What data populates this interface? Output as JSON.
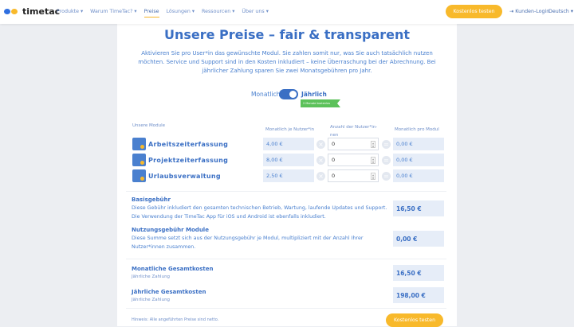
{
  "nav": {
    "logo": "timetac",
    "items": [
      "Produkte ▾",
      "Warum TimeTac? ▾",
      "Preise",
      "Lösungen ▾",
      "Ressourcen ▾",
      "Über uns ▾"
    ],
    "active": "Preise",
    "cta": "Kostenlos testen",
    "login": "Kunden-Login",
    "language": "Deutsch ▾"
  },
  "hero": {
    "title": "Unsere Preise – fair & transparent",
    "intro": "Aktivieren Sie pro User*in das gewünschte Modul. Sie zahlen somit nur, was Sie auch tatsächlich nutzen möchten. Service und Support sind in den Kosten inkludiert – keine Überraschung bei der Abrechnung. Bei jährlicher Zahlung sparen Sie zwei Monatsgebühren pro Jahr."
  },
  "billing": {
    "monthly": "Monatlich",
    "yearly": "Jährlich",
    "selected": "Jährlich",
    "badge": "2 Monate kostenlos"
  },
  "table": {
    "headers": {
      "modules": "Unsere Module",
      "price": "Monatlich je Nutzer*in",
      "count": "Anzahl der Nutzer*in-nen",
      "total": "Monatlich pro Modul"
    },
    "rows": [
      {
        "name": "Arbeitszeiterfassung",
        "icon": "clock-icon",
        "price": "4,00 €",
        "count": "0",
        "total": "0,00 €"
      },
      {
        "name": "Projektzeiterfassung",
        "icon": "folder-icon",
        "price": "8,00 €",
        "count": "0",
        "total": "0,00 €"
      },
      {
        "name": "Urlaubsverwaltung",
        "icon": "calendar-icon",
        "price": "2,50 €",
        "count": "0",
        "total": "0,00 €"
      }
    ]
  },
  "fees": {
    "base": {
      "title": "Basisgebühr",
      "desc": "Diese Gebühr inkludiert den gesamten technischen Betrieb, Wartung, laufende Updates und Support. Die Verwendung der TimeTac App für iOS und Android ist ebenfalls inkludiert.",
      "value": "16,50 €"
    },
    "usage": {
      "title": "Nutzungsgebühr Module",
      "desc": "Diese Summe setzt sich aus der Nutzungsgebühr je Modul, multipliziert mit der Anzahl Ihrer Nutzer*innen zusammen.",
      "value": "0,00 €"
    }
  },
  "totals": {
    "monthly": {
      "title": "Monatliche Gesamtkosten",
      "sub": "Jährliche Zahlung",
      "value": "16,50 €"
    },
    "yearly": {
      "title": "Jährliche Gesamtkosten",
      "sub": "Jährliche Zahlung",
      "value": "198,00 €"
    }
  },
  "footer": {
    "note": "Hinweis: Alle angeführten Preise sind netto.",
    "cta": "Kostenlos testen"
  },
  "colors": {
    "brand": "#3a6fc4",
    "accent": "#f8b92b",
    "badge": "#5cc15a"
  }
}
